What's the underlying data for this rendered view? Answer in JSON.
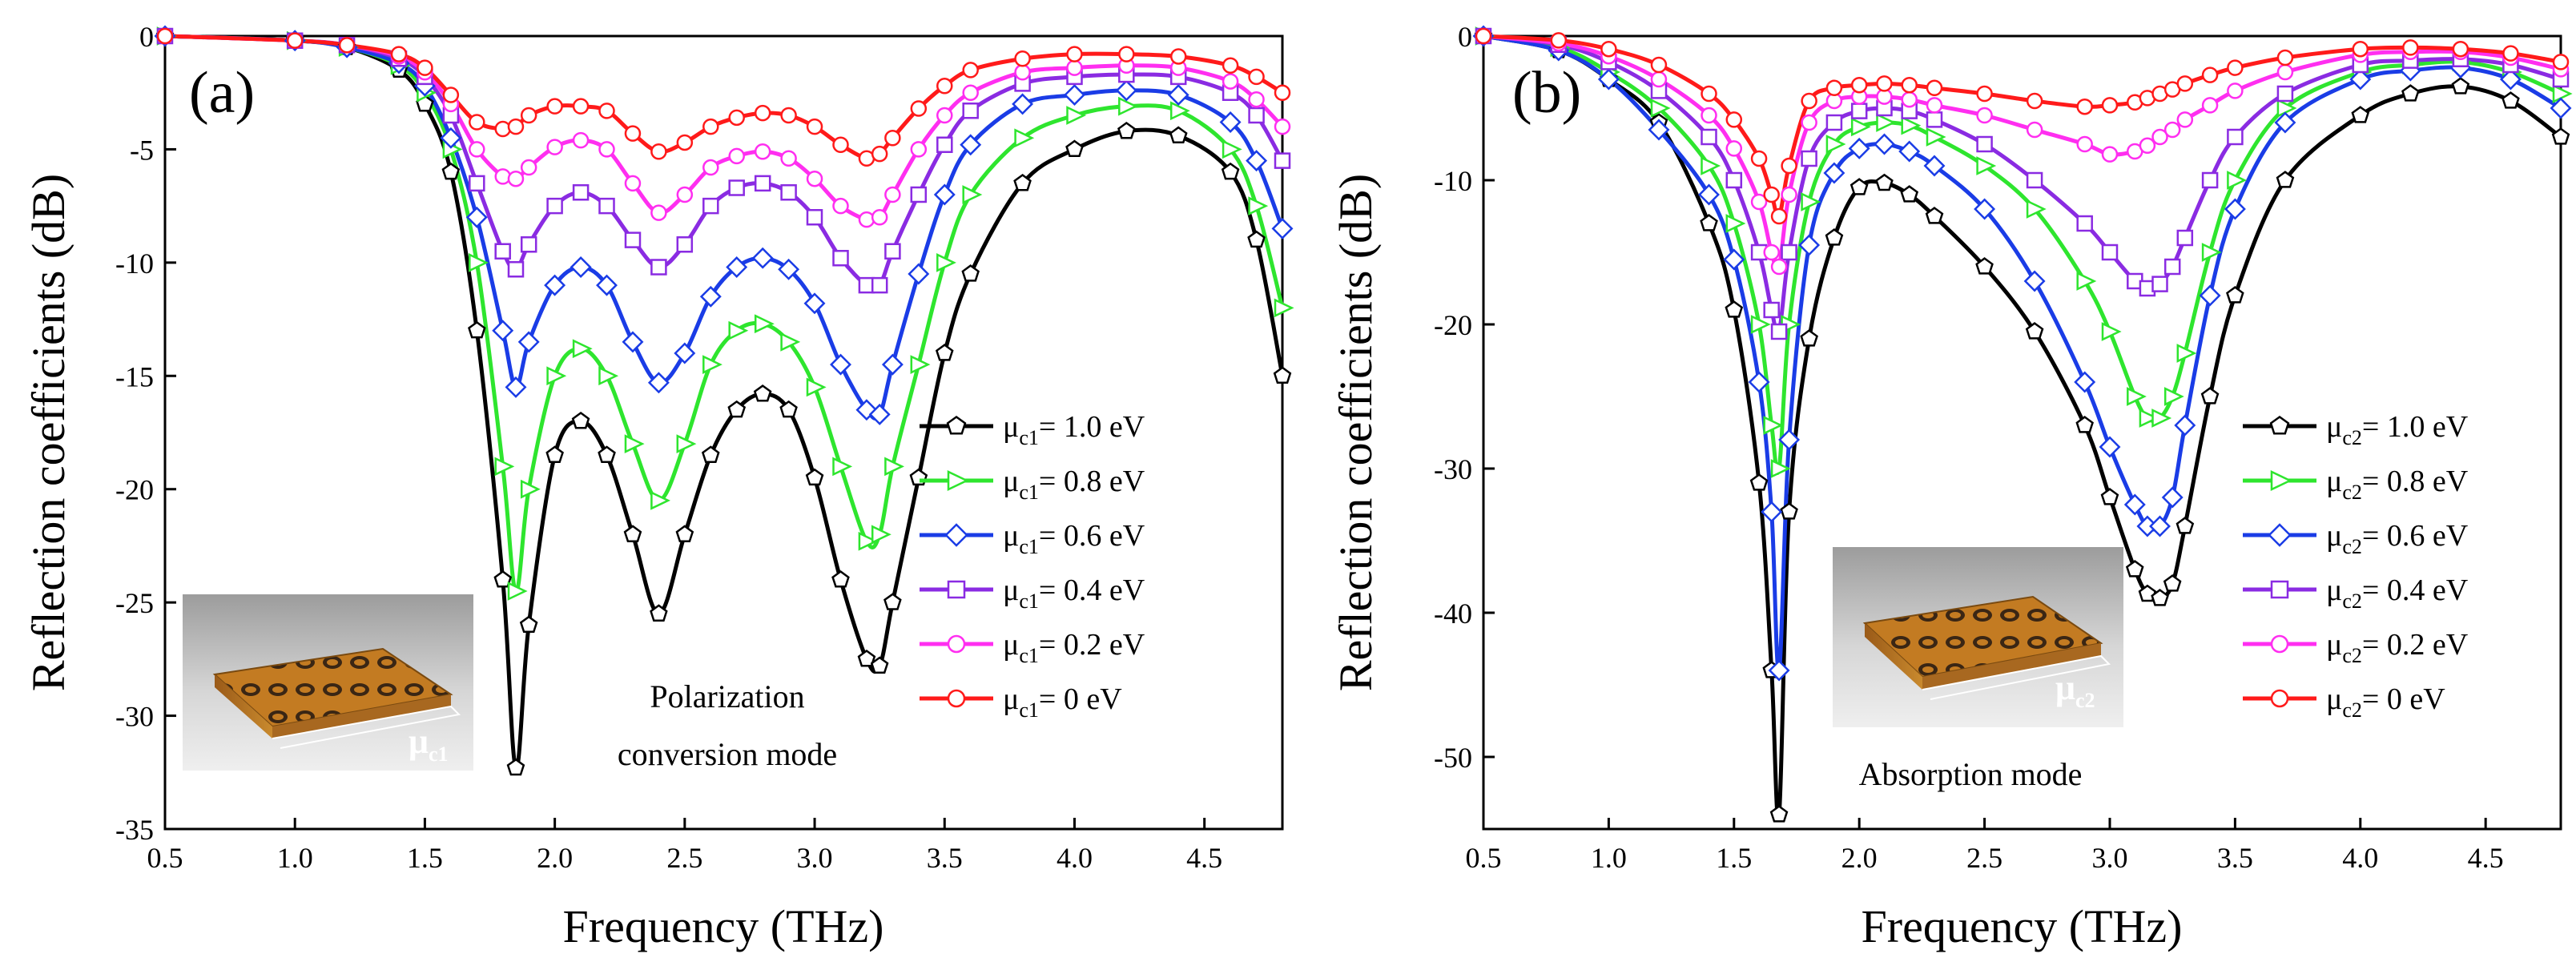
{
  "chart_data": [
    {
      "type": "line",
      "panel_label": "(a)",
      "xlabel": "Frequency (THz)",
      "ylabel": "Reflection coefficients (dB)",
      "xlim": [
        0.5,
        4.8
      ],
      "ylim": [
        -35,
        0
      ],
      "xticks": [
        0.5,
        1.0,
        1.5,
        2.0,
        2.5,
        3.0,
        3.5,
        4.0,
        4.5
      ],
      "xtick_labels": [
        "0.5",
        "1.0",
        "1.5",
        "2.0",
        "2.5",
        "3.0",
        "3.5",
        "4.0",
        "4.5"
      ],
      "yticks": [
        0,
        -5,
        -10,
        -15,
        -20,
        -25,
        -30,
        -35
      ],
      "ytick_labels": [
        "0",
        "-5",
        "-10",
        "-15",
        "-20",
        "-25",
        "-30",
        "-35"
      ],
      "legend_location": "right",
      "annotation": [
        "Polarization",
        "conversion mode"
      ],
      "inset_label": {
        "main": "μ",
        "sub": "c1"
      },
      "series": [
        {
          "legend_sub": "c1",
          "legend_value": "= 1.0 eV",
          "color": "#000000",
          "marker": "pentagon",
          "x": [
            0.5,
            1.0,
            1.2,
            1.4,
            1.5,
            1.6,
            1.7,
            1.8,
            1.85,
            1.9,
            2.0,
            2.1,
            2.2,
            2.3,
            2.4,
            2.5,
            2.6,
            2.7,
            2.8,
            2.9,
            3.0,
            3.1,
            3.2,
            3.25,
            3.3,
            3.4,
            3.5,
            3.6,
            3.8,
            4.0,
            4.2,
            4.4,
            4.6,
            4.7,
            4.8
          ],
          "y": [
            0,
            -0.2,
            -0.5,
            -1.5,
            -3,
            -6,
            -13,
            -24,
            -32.3,
            -26,
            -18.5,
            -17,
            -18.5,
            -22,
            -25.5,
            -22,
            -18.5,
            -16.5,
            -15.8,
            -16.5,
            -19.5,
            -24,
            -27.5,
            -27.8,
            -25,
            -19.5,
            -14,
            -10.5,
            -6.5,
            -5,
            -4.2,
            -4.4,
            -6,
            -9,
            -15
          ]
        },
        {
          "legend_sub": "c1",
          "legend_value": "= 0.8 eV",
          "color": "#2ee52e",
          "marker": "triangle-right",
          "x": [
            0.5,
            1.0,
            1.2,
            1.4,
            1.5,
            1.6,
            1.7,
            1.8,
            1.85,
            1.9,
            2.0,
            2.1,
            2.2,
            2.3,
            2.4,
            2.5,
            2.6,
            2.7,
            2.8,
            2.9,
            3.0,
            3.1,
            3.2,
            3.25,
            3.3,
            3.4,
            3.5,
            3.6,
            3.8,
            4.0,
            4.2,
            4.4,
            4.6,
            4.7,
            4.8
          ],
          "y": [
            0,
            -0.2,
            -0.5,
            -1.3,
            -2.5,
            -5,
            -10,
            -19,
            -24.5,
            -20,
            -15,
            -13.8,
            -15,
            -18,
            -20.5,
            -18,
            -14.5,
            -13,
            -12.7,
            -13.5,
            -15.5,
            -19,
            -22.3,
            -22,
            -19,
            -14.5,
            -10,
            -7,
            -4.5,
            -3.5,
            -3.1,
            -3.3,
            -5,
            -7.5,
            -12
          ]
        },
        {
          "legend_sub": "c1",
          "legend_value": "= 0.6 eV",
          "color": "#1a3ce6",
          "marker": "diamond",
          "x": [
            0.5,
            1.0,
            1.2,
            1.4,
            1.5,
            1.6,
            1.7,
            1.8,
            1.85,
            1.9,
            2.0,
            2.1,
            2.2,
            2.3,
            2.4,
            2.5,
            2.6,
            2.7,
            2.8,
            2.9,
            3.0,
            3.1,
            3.2,
            3.25,
            3.3,
            3.4,
            3.5,
            3.6,
            3.8,
            4.0,
            4.2,
            4.4,
            4.6,
            4.7,
            4.8
          ],
          "y": [
            0,
            -0.2,
            -0.5,
            -1.2,
            -2.2,
            -4.5,
            -8,
            -13,
            -15.5,
            -13.5,
            -11,
            -10.2,
            -11,
            -13.5,
            -15.3,
            -14,
            -11.5,
            -10.2,
            -9.8,
            -10.3,
            -11.8,
            -14.5,
            -16.5,
            -16.7,
            -14.5,
            -10.5,
            -7,
            -4.8,
            -3,
            -2.6,
            -2.4,
            -2.6,
            -3.8,
            -5.5,
            -8.5
          ]
        },
        {
          "legend_sub": "c1",
          "legend_value": "= 0.4 eV",
          "color": "#8a2be2",
          "marker": "square",
          "x": [
            0.5,
            1.0,
            1.2,
            1.4,
            1.5,
            1.6,
            1.7,
            1.8,
            1.85,
            1.9,
            2.0,
            2.1,
            2.2,
            2.3,
            2.4,
            2.5,
            2.6,
            2.7,
            2.8,
            2.9,
            3.0,
            3.1,
            3.2,
            3.25,
            3.3,
            3.4,
            3.5,
            3.6,
            3.8,
            4.0,
            4.2,
            4.4,
            4.6,
            4.7,
            4.8
          ],
          "y": [
            0,
            -0.2,
            -0.4,
            -1,
            -1.8,
            -3.5,
            -6.5,
            -9.5,
            -10.3,
            -9.2,
            -7.5,
            -6.9,
            -7.5,
            -9,
            -10.2,
            -9.2,
            -7.5,
            -6.7,
            -6.5,
            -6.9,
            -8,
            -9.8,
            -11,
            -11,
            -9.5,
            -7,
            -4.8,
            -3.3,
            -2.1,
            -1.8,
            -1.7,
            -1.8,
            -2.5,
            -3.5,
            -5.5
          ]
        },
        {
          "legend_sub": "c1",
          "legend_value": "= 0.2 eV",
          "color": "#ff2ef0",
          "marker": "circle",
          "x": [
            0.5,
            1.0,
            1.2,
            1.4,
            1.5,
            1.6,
            1.7,
            1.8,
            1.85,
            1.9,
            2.0,
            2.1,
            2.2,
            2.3,
            2.4,
            2.5,
            2.6,
            2.7,
            2.8,
            2.9,
            3.0,
            3.1,
            3.2,
            3.25,
            3.3,
            3.4,
            3.5,
            3.6,
            3.8,
            4.0,
            4.2,
            4.4,
            4.6,
            4.7,
            4.8
          ],
          "y": [
            0,
            -0.2,
            -0.4,
            -0.9,
            -1.6,
            -3,
            -5,
            -6.2,
            -6.3,
            -5.8,
            -4.9,
            -4.6,
            -5,
            -6.5,
            -7.8,
            -7,
            -5.8,
            -5.3,
            -5.1,
            -5.4,
            -6.3,
            -7.5,
            -8.1,
            -8,
            -7,
            -5,
            -3.5,
            -2.5,
            -1.6,
            -1.4,
            -1.3,
            -1.4,
            -2,
            -2.8,
            -4
          ]
        },
        {
          "legend_sub": "c1",
          "legend_value": "= 0 eV",
          "color": "#ff1a1a",
          "marker": "circle",
          "x": [
            0.5,
            1.0,
            1.2,
            1.4,
            1.5,
            1.6,
            1.7,
            1.8,
            1.85,
            1.9,
            2.0,
            2.1,
            2.2,
            2.3,
            2.4,
            2.5,
            2.6,
            2.7,
            2.8,
            2.9,
            3.0,
            3.1,
            3.2,
            3.25,
            3.3,
            3.4,
            3.5,
            3.6,
            3.8,
            4.0,
            4.2,
            4.4,
            4.6,
            4.7,
            4.8
          ],
          "y": [
            0,
            -0.2,
            -0.4,
            -0.8,
            -1.4,
            -2.6,
            -3.8,
            -4.1,
            -4.0,
            -3.5,
            -3.1,
            -3.1,
            -3.3,
            -4.3,
            -5.1,
            -4.7,
            -4,
            -3.6,
            -3.4,
            -3.5,
            -4,
            -4.8,
            -5.4,
            -5.2,
            -4.5,
            -3.2,
            -2.2,
            -1.5,
            -1,
            -0.8,
            -0.8,
            -0.9,
            -1.3,
            -1.8,
            -2.5
          ]
        }
      ]
    },
    {
      "type": "line",
      "panel_label": "(b)",
      "xlabel": "Frequency (THz)",
      "ylabel": "Reflection coefficients (dB)",
      "xlim": [
        0.5,
        4.8
      ],
      "ylim": [
        -55,
        0
      ],
      "xticks": [
        0.5,
        1.0,
        1.5,
        2.0,
        2.5,
        3.0,
        3.5,
        4.0,
        4.5
      ],
      "xtick_labels": [
        "0.5",
        "1.0",
        "1.5",
        "2.0",
        "2.5",
        "3.0",
        "3.5",
        "4.0",
        "4.5"
      ],
      "yticks": [
        0,
        -10,
        -20,
        -30,
        -40,
        -50
      ],
      "ytick_labels": [
        "0",
        "-10",
        "-20",
        "-30",
        "-40",
        "-50"
      ],
      "legend_location": "right",
      "annotation": [
        "Absorption mode"
      ],
      "inset_label": {
        "main": "μ",
        "sub": "c2"
      },
      "series": [
        {
          "legend_sub": "c2",
          "legend_value": "= 1.0 eV",
          "color": "#000000",
          "marker": "pentagon",
          "x": [
            0.5,
            0.8,
            1.0,
            1.2,
            1.4,
            1.5,
            1.6,
            1.65,
            1.68,
            1.72,
            1.8,
            1.9,
            2.0,
            2.1,
            2.2,
            2.3,
            2.5,
            2.7,
            2.9,
            3.0,
            3.1,
            3.15,
            3.2,
            3.25,
            3.3,
            3.4,
            3.5,
            3.7,
            4.0,
            4.2,
            4.4,
            4.6,
            4.8
          ],
          "y": [
            0,
            -1,
            -3,
            -6,
            -13,
            -19,
            -31,
            -44,
            -54,
            -33,
            -21,
            -14,
            -10.5,
            -10.2,
            -11,
            -12.5,
            -16,
            -20.5,
            -27,
            -32,
            -37,
            -38.7,
            -39,
            -38,
            -34,
            -25,
            -18,
            -10,
            -5.5,
            -4,
            -3.5,
            -4.5,
            -7
          ]
        },
        {
          "legend_sub": "c2",
          "legend_value": "= 0.8 eV",
          "color": "#2ee52e",
          "marker": "triangle-right",
          "x": [
            0.5,
            0.8,
            1.0,
            1.2,
            1.4,
            1.5,
            1.6,
            1.65,
            1.68,
            1.72,
            1.8,
            1.9,
            2.0,
            2.1,
            2.2,
            2.3,
            2.5,
            2.7,
            2.9,
            3.0,
            3.1,
            3.15,
            3.2,
            3.25,
            3.3,
            3.4,
            3.5,
            3.7,
            4.0,
            4.2,
            4.4,
            4.6,
            4.8
          ],
          "y": [
            0,
            -0.8,
            -2.5,
            -5,
            -9,
            -13,
            -20,
            -27,
            -30,
            -20,
            -11.5,
            -7.5,
            -6.3,
            -6,
            -6.2,
            -7,
            -9,
            -12,
            -17,
            -20.5,
            -25,
            -26.5,
            -26.5,
            -25,
            -22,
            -15,
            -10,
            -5,
            -2.5,
            -2,
            -1.8,
            -2.5,
            -4
          ]
        },
        {
          "legend_sub": "c2",
          "legend_value": "= 0.6 eV",
          "color": "#1a3ce6",
          "marker": "diamond",
          "x": [
            0.5,
            0.8,
            1.0,
            1.2,
            1.4,
            1.5,
            1.6,
            1.65,
            1.68,
            1.72,
            1.8,
            1.9,
            2.0,
            2.1,
            2.2,
            2.3,
            2.5,
            2.7,
            2.9,
            3.0,
            3.1,
            3.15,
            3.2,
            3.25,
            3.3,
            3.4,
            3.5,
            3.7,
            4.0,
            4.2,
            4.4,
            4.6,
            4.8
          ],
          "y": [
            0,
            -1,
            -3,
            -6.5,
            -11,
            -15.5,
            -24,
            -33,
            -44,
            -28,
            -14.5,
            -9.5,
            -7.8,
            -7.5,
            -8,
            -9,
            -12,
            -17,
            -24,
            -28.5,
            -32.5,
            -34,
            -34,
            -32,
            -27,
            -18,
            -12,
            -6,
            -3,
            -2.4,
            -2.2,
            -3,
            -5
          ]
        },
        {
          "legend_sub": "c2",
          "legend_value": "= 0.4 eV",
          "color": "#8a2be2",
          "marker": "square",
          "x": [
            0.5,
            0.8,
            1.0,
            1.2,
            1.4,
            1.5,
            1.6,
            1.65,
            1.68,
            1.72,
            1.8,
            1.9,
            2.0,
            2.1,
            2.2,
            2.3,
            2.5,
            2.7,
            2.9,
            3.0,
            3.1,
            3.15,
            3.2,
            3.25,
            3.3,
            3.4,
            3.5,
            3.7,
            4.0,
            4.2,
            4.4,
            4.6,
            4.8
          ],
          "y": [
            0,
            -0.6,
            -1.8,
            -3.8,
            -7,
            -10,
            -15,
            -19,
            -20.5,
            -15,
            -8.5,
            -6,
            -5.2,
            -5,
            -5.2,
            -5.8,
            -7.5,
            -10,
            -13,
            -15,
            -17,
            -17.5,
            -17.2,
            -16,
            -14,
            -10,
            -7,
            -4,
            -2,
            -1.7,
            -1.6,
            -2,
            -3
          ]
        },
        {
          "legend_sub": "c2",
          "legend_value": "= 0.2 eV",
          "color": "#ff2ef0",
          "marker": "circle",
          "x": [
            0.5,
            0.8,
            1.0,
            1.2,
            1.4,
            1.5,
            1.6,
            1.65,
            1.68,
            1.72,
            1.8,
            1.9,
            2.0,
            2.1,
            2.2,
            2.3,
            2.5,
            2.7,
            2.9,
            3.0,
            3.1,
            3.15,
            3.2,
            3.25,
            3.3,
            3.4,
            3.5,
            3.7,
            4.0,
            4.2,
            4.4,
            4.6,
            4.8
          ],
          "y": [
            0,
            -0.5,
            -1.4,
            -3,
            -5.5,
            -7.8,
            -11.5,
            -15,
            -16,
            -11,
            -6,
            -4.5,
            -4.2,
            -4.2,
            -4.4,
            -4.8,
            -5.5,
            -6.5,
            -7.5,
            -8.2,
            -8,
            -7.6,
            -7,
            -6.5,
            -5.8,
            -4.8,
            -3.8,
            -2.5,
            -1.3,
            -1.1,
            -1.1,
            -1.5,
            -2.3
          ]
        },
        {
          "legend_sub": "c2",
          "legend_value": "= 0 eV",
          "color": "#ff1a1a",
          "marker": "circle",
          "x": [
            0.5,
            0.8,
            1.0,
            1.2,
            1.4,
            1.5,
            1.6,
            1.65,
            1.68,
            1.72,
            1.8,
            1.9,
            2.0,
            2.1,
            2.2,
            2.3,
            2.5,
            2.7,
            2.9,
            3.0,
            3.1,
            3.15,
            3.2,
            3.25,
            3.3,
            3.4,
            3.5,
            3.7,
            4.0,
            4.2,
            4.4,
            4.6,
            4.8
          ],
          "y": [
            0,
            -0.3,
            -0.9,
            -2,
            -4,
            -5.8,
            -8.5,
            -11,
            -12.5,
            -9,
            -4.5,
            -3.6,
            -3.4,
            -3.3,
            -3.4,
            -3.6,
            -4,
            -4.5,
            -4.9,
            -4.8,
            -4.6,
            -4.3,
            -4,
            -3.7,
            -3.3,
            -2.7,
            -2.2,
            -1.5,
            -0.9,
            -0.8,
            -0.9,
            -1.2,
            -1.8
          ]
        }
      ]
    }
  ]
}
